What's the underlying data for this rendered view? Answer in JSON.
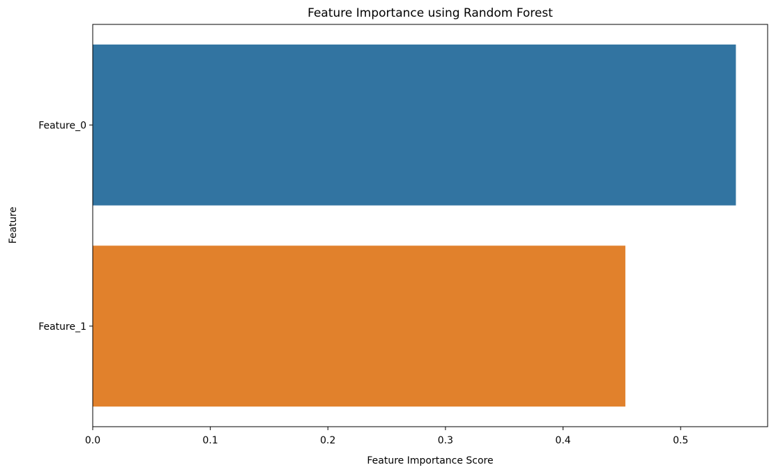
{
  "chart_data": {
    "type": "bar",
    "orientation": "horizontal",
    "title": "Feature Importance using Random Forest",
    "xlabel": "Feature Importance Score",
    "ylabel": "Feature",
    "categories": [
      "Feature_0",
      "Feature_1"
    ],
    "values": [
      0.547,
      0.453
    ],
    "colors": [
      "#3274a1",
      "#e1812c"
    ],
    "xlim": [
      0,
      0.574
    ],
    "xticks": [
      0.0,
      0.1,
      0.2,
      0.3,
      0.4,
      0.5
    ],
    "xtick_labels": [
      "0.0",
      "0.1",
      "0.2",
      "0.3",
      "0.4",
      "0.5"
    ],
    "grid": false,
    "legend": "none"
  }
}
